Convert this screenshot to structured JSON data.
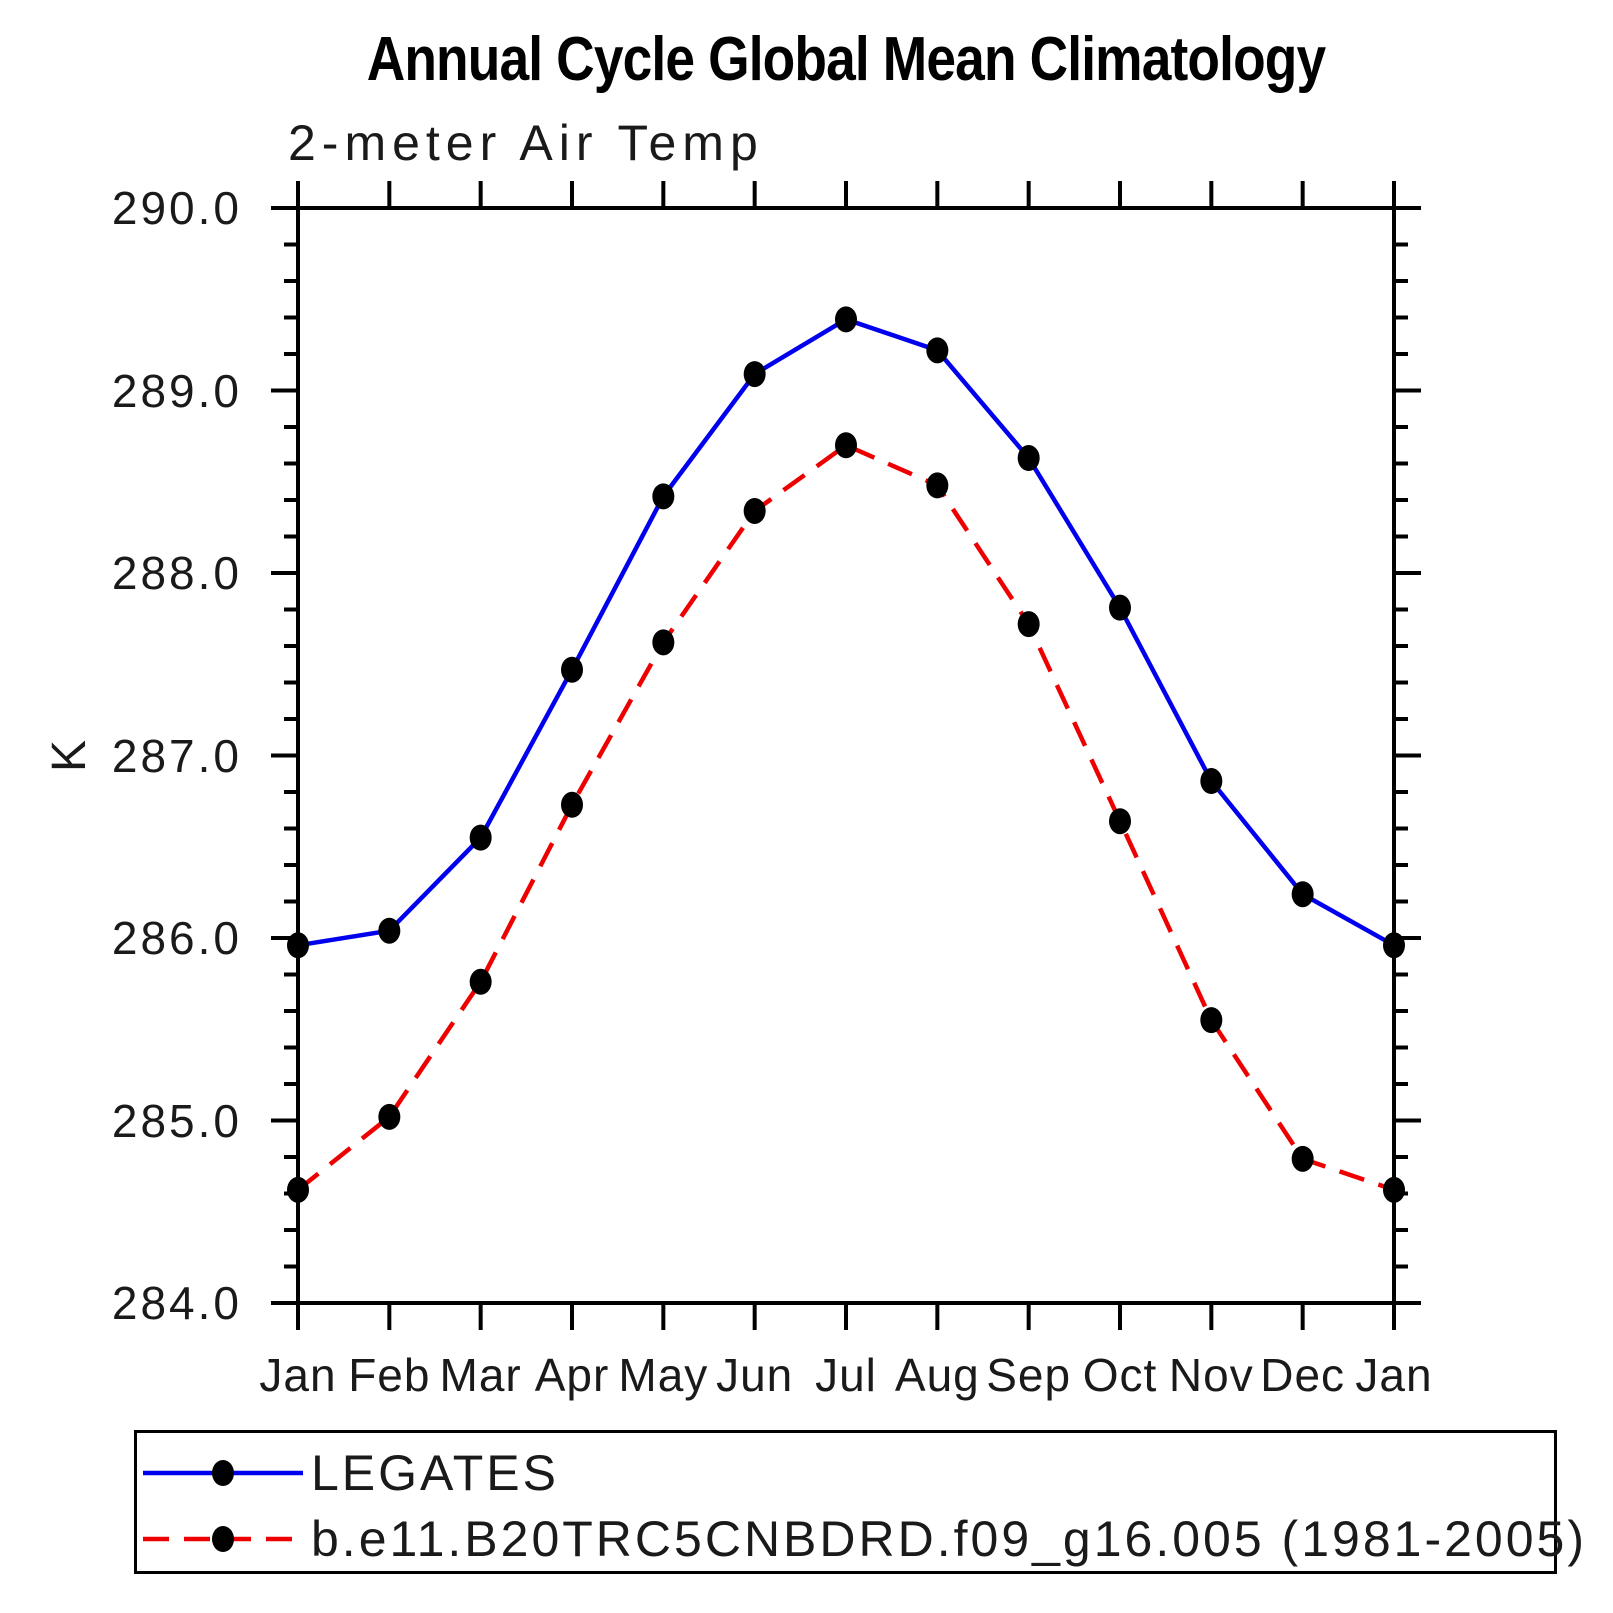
{
  "chart_data": {
    "type": "line",
    "title": "Annual Cycle Global Mean Climatology",
    "subtitle": "2-meter Air Temp",
    "xlabel": "",
    "ylabel": "K",
    "x_categories": [
      "Jan",
      "Feb",
      "Mar",
      "Apr",
      "May",
      "Jun",
      "Jul",
      "Aug",
      "Sep",
      "Oct",
      "Nov",
      "Dec",
      "Jan"
    ],
    "ylim": [
      284.0,
      290.0
    ],
    "ytick_interval": 1.0,
    "yminor_interval": 0.2,
    "ytick_labels": [
      "290.0",
      "289.0",
      "288.0",
      "287.0",
      "286.0",
      "285.0",
      "284.0"
    ],
    "grid": false,
    "legend_position": "bottom-left-box",
    "frame_color": "#000000",
    "marker": "filled-circle",
    "marker_color": "#000000",
    "series": [
      {
        "name": "LEGATES",
        "color": "#0000ee",
        "style": "solid",
        "values": [
          285.96,
          286.04,
          286.55,
          287.47,
          288.42,
          289.09,
          289.39,
          289.22,
          288.63,
          287.81,
          286.86,
          286.24,
          285.96
        ]
      },
      {
        "name": "b.e11.B20TRC5CNBDRD.f09_g16.005 (1981-2005)",
        "color": "#ee0000",
        "style": "dashed",
        "values": [
          284.62,
          285.02,
          285.76,
          286.73,
          287.62,
          288.34,
          288.7,
          288.48,
          287.72,
          286.64,
          285.55,
          284.79,
          284.62
        ]
      }
    ]
  }
}
